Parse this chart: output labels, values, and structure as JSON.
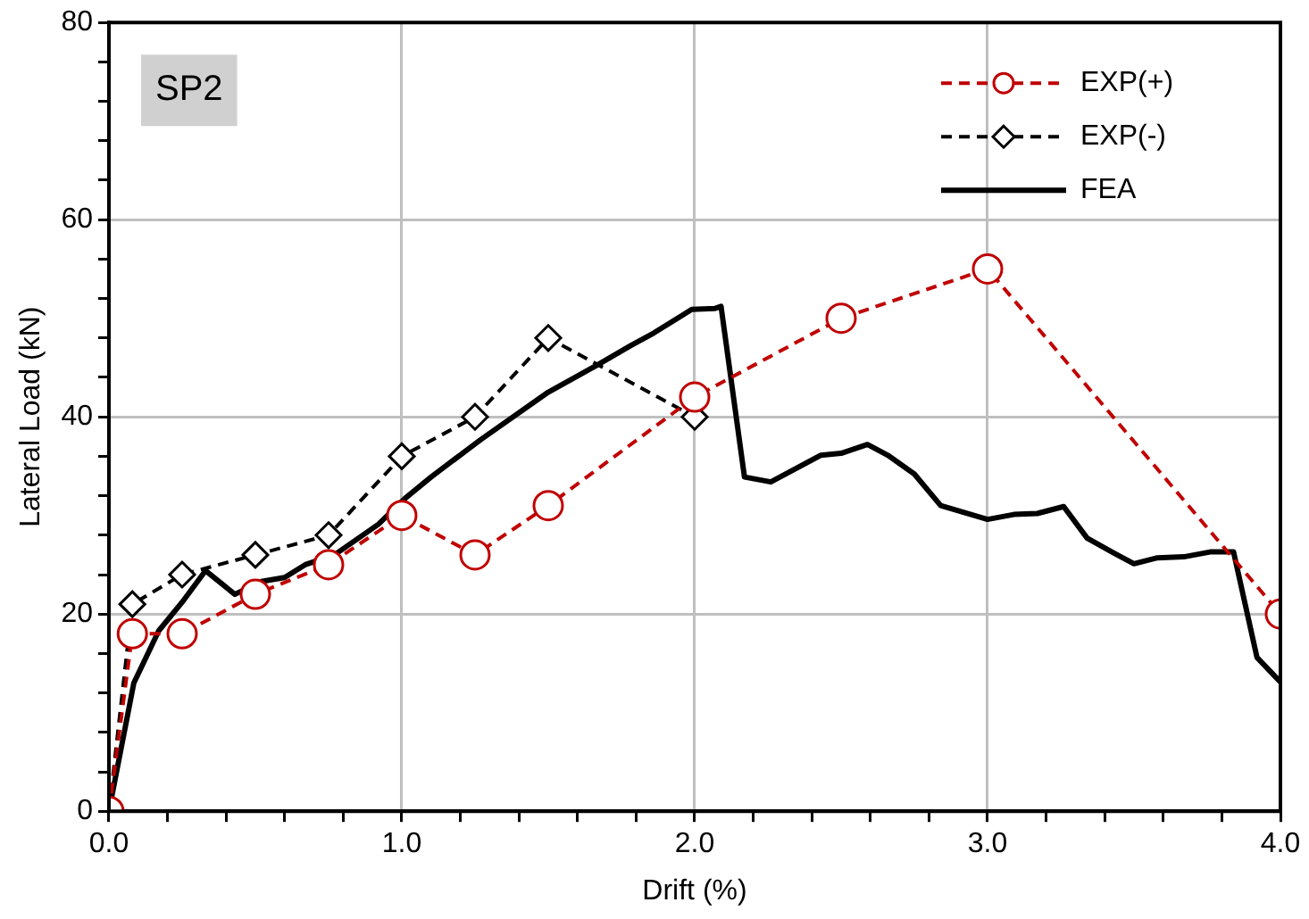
{
  "chart_data": {
    "type": "line",
    "xlabel": "Drift (%)",
    "ylabel": "Lateral Load (kN)",
    "annotations": [
      "SP2"
    ],
    "xlim": [
      0,
      4
    ],
    "ylim": [
      0,
      80
    ],
    "xticks": [
      {
        "value": 0,
        "label": "0.0"
      },
      {
        "value": 0.2,
        "label": null
      },
      {
        "value": 0.4,
        "label": null
      },
      {
        "value": 0.6,
        "label": null
      },
      {
        "value": 0.8,
        "label": null
      },
      {
        "value": 1,
        "label": "1.0"
      },
      {
        "value": 1.2,
        "label": null
      },
      {
        "value": 1.4,
        "label": null
      },
      {
        "value": 1.6,
        "label": null
      },
      {
        "value": 1.8,
        "label": null
      },
      {
        "value": 2,
        "label": "2.0"
      },
      {
        "value": 2.2,
        "label": null
      },
      {
        "value": 2.4,
        "label": null
      },
      {
        "value": 2.6,
        "label": null
      },
      {
        "value": 2.8,
        "label": null
      },
      {
        "value": 3,
        "label": "3.0"
      },
      {
        "value": 3.2,
        "label": null
      },
      {
        "value": 3.4,
        "label": null
      },
      {
        "value": 3.6,
        "label": null
      },
      {
        "value": 3.8,
        "label": null
      },
      {
        "value": 4,
        "label": "4.0"
      }
    ],
    "yticks": [
      0,
      {
        "value": 4,
        "label": null
      },
      {
        "value": 8,
        "label": null
      },
      {
        "value": 12,
        "label": null
      },
      {
        "value": 16,
        "label": null
      },
      20,
      {
        "value": 24,
        "label": null
      },
      {
        "value": 28,
        "label": null
      },
      {
        "value": 32,
        "label": null
      },
      {
        "value": 36,
        "label": null
      },
      40,
      {
        "value": 44,
        "label": null
      },
      {
        "value": 48,
        "label": null
      },
      {
        "value": 52,
        "label": null
      },
      {
        "value": 56,
        "label": null
      },
      60,
      {
        "value": 64,
        "label": null
      },
      {
        "value": 68,
        "label": null
      },
      {
        "value": 72,
        "label": null
      },
      {
        "value": 76,
        "label": null
      },
      80
    ],
    "grid": true,
    "legend": "top right",
    "series": [
      {
        "name": "EXP(+)",
        "color": "#c00000",
        "marker": "circle",
        "line_style": "dashed",
        "x": [
          0,
          0.08,
          0.25,
          0.5,
          0.75,
          1,
          1.25,
          1.5,
          2,
          2.5,
          3,
          4
        ],
        "values": [
          0,
          18,
          18,
          22,
          25,
          30,
          26,
          31,
          42,
          50,
          55,
          20
        ]
      },
      {
        "name": "EXP(-)",
        "color": "#000000",
        "marker": "diamond",
        "line_style": "dashed",
        "x": [
          0,
          0.08,
          0.25,
          0.5,
          0.75,
          1,
          1.25,
          1.5,
          2
        ],
        "values": [
          0,
          21,
          24,
          26,
          28,
          36,
          40,
          48,
          40
        ]
      },
      {
        "name": "FEA",
        "color": "#000000",
        "marker": "none",
        "line_style": "solid",
        "x": [
          0,
          0.085,
          0.17,
          0.25,
          0.33,
          0.43,
          0.52,
          0.6,
          0.67,
          0.77,
          0.92,
          1.01,
          1.1,
          1.27,
          1.5,
          1.67,
          1.78,
          1.86,
          1.99,
          2.07,
          2.09,
          2.17,
          2.26,
          2.43,
          2.5,
          2.59,
          2.66,
          2.75,
          2.84,
          3,
          3.09,
          3.17,
          3.26,
          3.34,
          3.43,
          3.5,
          3.58,
          3.67,
          3.76,
          3.84,
          3.92,
          4
        ],
        "values": [
          0,
          13,
          18.3,
          21.2,
          24.4,
          22,
          23.3,
          23.7,
          25,
          26,
          29.1,
          31.7,
          33.9,
          37.7,
          42.5,
          45.3,
          47.2,
          48.5,
          50.9,
          51,
          51.2,
          33.9,
          33.4,
          36.1,
          36.3,
          37.2,
          36.1,
          34.2,
          31,
          29.6,
          30.1,
          30.2,
          30.9,
          27.7,
          26.2,
          25.1,
          25.7,
          25.8,
          26.3,
          26.3,
          15.6,
          13.1
        ]
      }
    ]
  }
}
